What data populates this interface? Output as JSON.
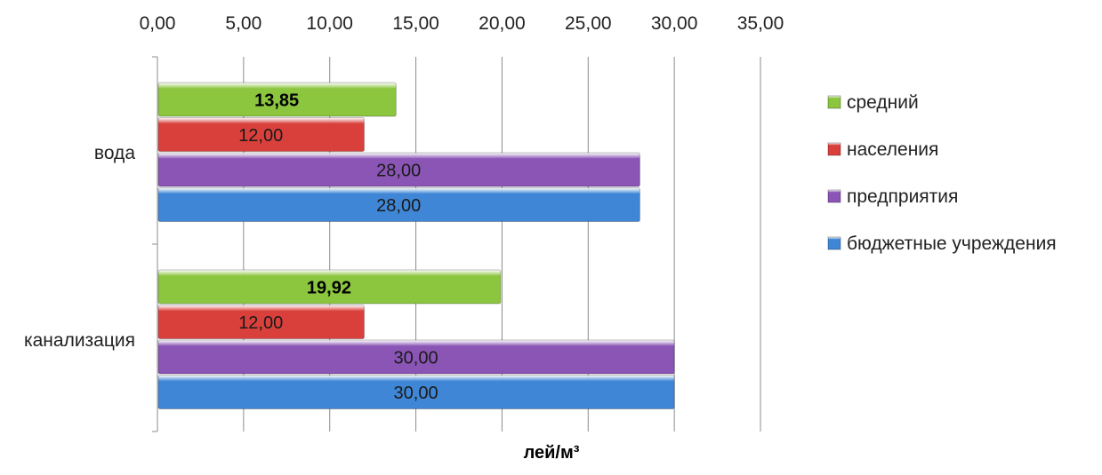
{
  "chart_data": {
    "type": "bar",
    "orientation": "horizontal",
    "categories": [
      "вода",
      "канализация"
    ],
    "xlabel": "лей/м³",
    "xlim": [
      0,
      35
    ],
    "x_ticks": [
      "0,00",
      "5,00",
      "10,00",
      "15,00",
      "20,00",
      "25,00",
      "30,00",
      "35,00"
    ],
    "x_axis_position": "top",
    "grid": true,
    "legend_position": "right",
    "series": [
      {
        "name": "средний",
        "values": [
          13.85,
          19.92
        ],
        "labels": [
          "13,85",
          "19,92"
        ],
        "color": "#8CC63F",
        "bold_labels": true
      },
      {
        "name": "населения",
        "values": [
          12.0,
          12.0
        ],
        "labels": [
          "12,00",
          "12,00"
        ],
        "color": "#D9403B",
        "bold_labels": false
      },
      {
        "name": "предприятия",
        "values": [
          28.0,
          30.0
        ],
        "labels": [
          "28,00",
          "30,00"
        ],
        "color": "#8A55B5",
        "bold_labels": false
      },
      {
        "name": "бюджетные учреждения",
        "values": [
          28.0,
          30.0
        ],
        "labels": [
          "28,00",
          "30,00"
        ],
        "color": "#3F87D6",
        "bold_labels": false
      }
    ]
  }
}
